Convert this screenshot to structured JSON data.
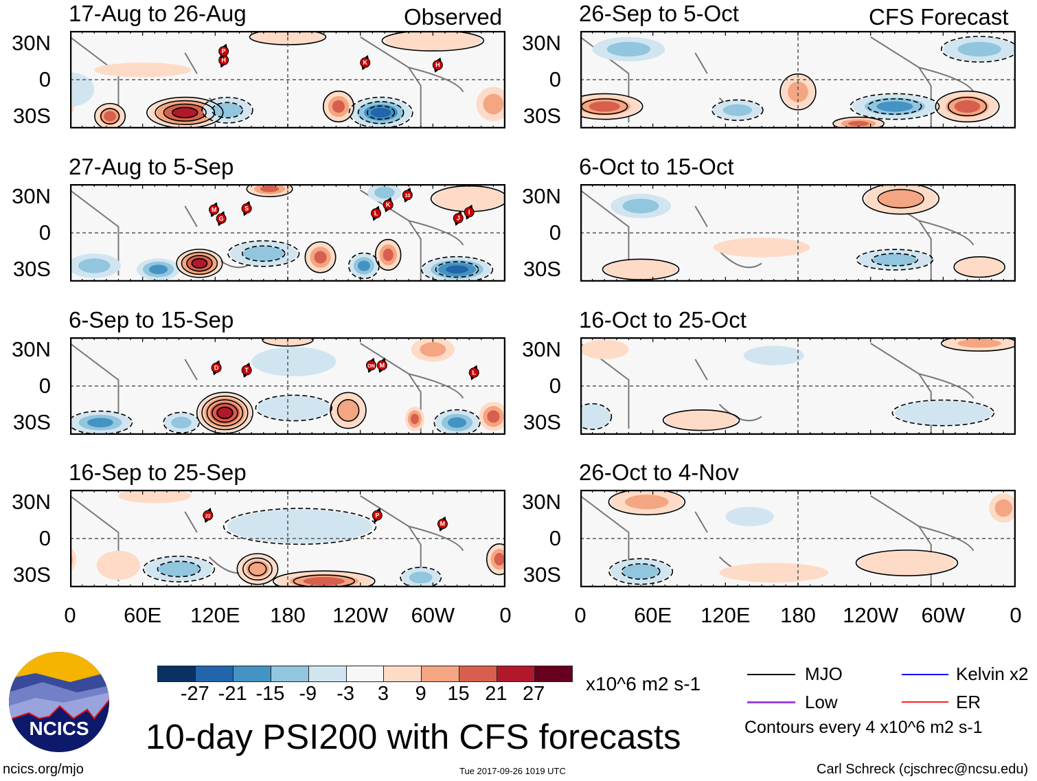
{
  "headers": {
    "observed": "Observed",
    "forecast": "CFS Forecast"
  },
  "lat_labels": [
    "30N",
    "0",
    "30S"
  ],
  "lon_labels": [
    "0",
    "60E",
    "120E",
    "180",
    "120W",
    "60W",
    "0"
  ],
  "colors": [
    "#0a3161",
    "#2166ac",
    "#4393c3",
    "#92c5de",
    "#d1e5f0",
    "#f7f7f7",
    "#fddbc7",
    "#f4a582",
    "#d6604d",
    "#b2182b",
    "#67001f"
  ],
  "chart_data": {
    "type": "heatmap",
    "title": "10-day PSI200 with CFS forecasts",
    "units": "x10^6 m2 s-1",
    "lon_range": [
      0,
      360
    ],
    "lat_range": [
      -40,
      40
    ],
    "colorbar_levels": [
      "-27",
      "-21",
      "-15",
      "-9",
      "-3",
      "3",
      "9",
      "15",
      "21",
      "27"
    ],
    "panels": [
      {
        "title": "17-Aug to 26-Aug",
        "column": "observed",
        "features": [
          {
            "lon": 95,
            "lat": -27,
            "lvl": 4,
            "w": 30,
            "h": 12,
            "rings": 4
          },
          {
            "lon": 33,
            "lat": -30,
            "lvl": 3,
            "w": 12,
            "h": 10,
            "rings": 2
          },
          {
            "lon": 257,
            "lat": -27,
            "lvl": -4,
            "w": 25,
            "h": 12,
            "rings": 3
          },
          {
            "lon": 222,
            "lat": -22,
            "lvl": 3,
            "w": 12,
            "h": 12,
            "rings": 1
          },
          {
            "lon": 130,
            "lat": -25,
            "lvl": -2,
            "w": 20,
            "h": 10,
            "rings": 2
          },
          {
            "lon": 350,
            "lat": -20,
            "lvl": 2,
            "w": 14,
            "h": 14,
            "rings": 0
          },
          {
            "lon": 300,
            "lat": 32,
            "lvl": 1,
            "w": 40,
            "h": 8,
            "rings": 1
          },
          {
            "lon": 60,
            "lat": 8,
            "lvl": 1,
            "w": 40,
            "h": 6,
            "rings": 0
          },
          {
            "lon": 0,
            "lat": -8,
            "lvl": -1,
            "w": 20,
            "h": 14,
            "rings": 0
          },
          {
            "lon": 180,
            "lat": 35,
            "lvl": 1,
            "w": 30,
            "h": 6,
            "rings": 1
          }
        ],
        "storms": [
          {
            "lon": 127,
            "lat": 16,
            "label": "H"
          },
          {
            "lon": 127,
            "lat": 19,
            "label": "P"
          },
          {
            "lon": 244,
            "lat": 14,
            "label": "K"
          },
          {
            "lon": 304,
            "lat": 12,
            "label": "H"
          }
        ]
      },
      {
        "title": "27-Aug to 5-Sep",
        "column": "observed",
        "features": [
          {
            "lon": 107,
            "lat": -25,
            "lvl": 4,
            "w": 18,
            "h": 11,
            "rings": 4
          },
          {
            "lon": 73,
            "lat": -30,
            "lvl": -3,
            "w": 18,
            "h": 9,
            "rings": 0
          },
          {
            "lon": 20,
            "lat": -27,
            "lvl": -2,
            "w": 22,
            "lat2": 0,
            "h": 10,
            "rings": 0
          },
          {
            "lon": 160,
            "lat": -17,
            "lvl": -2,
            "w": 28,
            "h": 10,
            "rings": 2
          },
          {
            "lon": 207,
            "lat": -20,
            "lvl": 3,
            "w": 12,
            "h": 12,
            "rings": 1
          },
          {
            "lon": 243,
            "lat": -27,
            "lvl": -3,
            "w": 12,
            "h": 10,
            "rings": 1
          },
          {
            "lon": 263,
            "lat": -18,
            "lvl": 3,
            "w": 10,
            "h": 12,
            "rings": 1
          },
          {
            "lon": 320,
            "lat": -30,
            "lvl": -4,
            "w": 28,
            "h": 10,
            "rings": 2
          },
          {
            "lon": 165,
            "lat": 36,
            "lvl": 3,
            "w": 18,
            "h": 6,
            "rings": 1
          },
          {
            "lon": 330,
            "lat": 28,
            "lvl": 1,
            "w": 30,
            "h": 10,
            "rings": 1
          },
          {
            "lon": 260,
            "lat": 33,
            "lvl": -2,
            "w": 14,
            "h": 8,
            "rings": 0
          }
        ],
        "storms": [
          {
            "lon": 119,
            "lat": 19,
            "label": "M"
          },
          {
            "lon": 125,
            "lat": 17,
            "label": "G"
          },
          {
            "lon": 146,
            "lat": 20,
            "label": "S"
          },
          {
            "lon": 253,
            "lat": 16,
            "label": "L"
          },
          {
            "lon": 263,
            "lat": 23,
            "label": "K"
          },
          {
            "lon": 279,
            "lat": 31,
            "label": "10"
          },
          {
            "lon": 321,
            "lat": 12,
            "label": "J"
          },
          {
            "lon": 330,
            "lat": 17,
            "label": "I"
          }
        ]
      },
      {
        "title": "6-Sep to 15-Sep",
        "column": "observed",
        "features": [
          {
            "lon": 128,
            "lat": -22,
            "lvl": 4,
            "w": 22,
            "h": 16,
            "rings": 5
          },
          {
            "lon": 25,
            "lat": -30,
            "lvl": -3,
            "w": 25,
            "h": 9,
            "rings": 1
          },
          {
            "lon": 92,
            "lat": -30,
            "lvl": -2,
            "w": 14,
            "h": 8,
            "rings": 1
          },
          {
            "lon": 230,
            "lat": -20,
            "lvl": 2,
            "w": 14,
            "h": 14,
            "rings": 2
          },
          {
            "lon": 285,
            "lat": -27,
            "lvl": 3,
            "w": 8,
            "h": 10,
            "rings": 0
          },
          {
            "lon": 320,
            "lat": -30,
            "lvl": -3,
            "w": 18,
            "h": 10,
            "rings": 1
          },
          {
            "lon": 350,
            "lat": -25,
            "lvl": 3,
            "w": 12,
            "h": 12,
            "rings": 0
          },
          {
            "lon": 185,
            "lat": -18,
            "lvl": -1,
            "w": 30,
            "h": 10,
            "rings": 1
          },
          {
            "lon": 185,
            "lat": 20,
            "lvl": -1,
            "w": 35,
            "h": 12,
            "rings": 0
          },
          {
            "lon": 300,
            "lat": 30,
            "lvl": 2,
            "w": 18,
            "h": 10,
            "rings": 0
          },
          {
            "lon": 180,
            "lat": 38,
            "lvl": 1,
            "w": 20,
            "h": 5,
            "rings": 1
          }
        ],
        "storms": [
          {
            "lon": 121,
            "lat": 15,
            "label": "D"
          },
          {
            "lon": 146,
            "lat": 13,
            "label": "T"
          },
          {
            "lon": 249,
            "lat": 17,
            "label": "ON"
          },
          {
            "lon": 258,
            "lat": 17,
            "label": "M"
          },
          {
            "lon": 334,
            "lat": 11,
            "label": "L"
          }
        ]
      },
      {
        "title": "16-Sep to 25-Sep",
        "column": "observed",
        "features": [
          {
            "lon": 90,
            "lat": -25,
            "lvl": -2,
            "w": 28,
            "h": 10,
            "rings": 2
          },
          {
            "lon": 155,
            "lat": -25,
            "lvl": 2,
            "w": 16,
            "h": 12,
            "rings": 3
          },
          {
            "lon": 210,
            "lat": -35,
            "lvl": 3,
            "w": 40,
            "h": 8,
            "rings": 2
          },
          {
            "lon": 290,
            "lat": -32,
            "lvl": -2,
            "w": 16,
            "h": 8,
            "rings": 1
          },
          {
            "lon": 355,
            "lat": -17,
            "lvl": 3,
            "w": 10,
            "h": 12,
            "rings": 1
          },
          {
            "lon": 40,
            "lat": -22,
            "lvl": 1,
            "w": 18,
            "h": 12,
            "rings": 0
          },
          {
            "lon": 190,
            "lat": 10,
            "lvl": -1,
            "w": 60,
            "h": 14,
            "rings": 1
          },
          {
            "lon": 70,
            "lat": 35,
            "lvl": 1,
            "w": 30,
            "h": 6,
            "rings": 0
          }
        ],
        "storms": [
          {
            "lon": 114,
            "lat": 19,
            "label": "22"
          },
          {
            "lon": 254,
            "lat": 19,
            "label": "P"
          },
          {
            "lon": 308,
            "lat": 12,
            "label": "M"
          }
        ]
      },
      {
        "title": "26-Sep to 5-Oct",
        "column": "forecast",
        "features": [
          {
            "lon": 20,
            "lat": -22,
            "lvl": 3,
            "w": 30,
            "h": 10,
            "rings": 2
          },
          {
            "lon": 260,
            "lat": -22,
            "lvl": -3,
            "w": 35,
            "h": 10,
            "rings": 2
          },
          {
            "lon": 320,
            "lat": -22,
            "lvl": 3,
            "w": 25,
            "h": 12,
            "rings": 2
          },
          {
            "lon": 180,
            "lat": -10,
            "lvl": 2,
            "w": 14,
            "h": 14,
            "rings": 1
          },
          {
            "lon": 130,
            "lat": -25,
            "lvl": -2,
            "w": 20,
            "h": 8,
            "rings": 1
          },
          {
            "lon": 40,
            "lat": 25,
            "lvl": -2,
            "w": 30,
            "h": 10,
            "rings": 0
          },
          {
            "lon": 330,
            "lat": 25,
            "lvl": -2,
            "w": 30,
            "h": 10,
            "rings": 1
          },
          {
            "lon": 230,
            "lat": -36,
            "lvl": 3,
            "w": 20,
            "h": 5,
            "rings": 1
          }
        ],
        "storms": []
      },
      {
        "title": "6-Oct to 15-Oct",
        "column": "forecast",
        "features": [
          {
            "lon": 265,
            "lat": 28,
            "lvl": 2,
            "w": 30,
            "h": 12,
            "rings": 2
          },
          {
            "lon": 50,
            "lat": -30,
            "lvl": 1,
            "w": 30,
            "h": 8,
            "rings": 1
          },
          {
            "lon": 260,
            "lat": -22,
            "lvl": -2,
            "w": 30,
            "h": 8,
            "rings": 2
          },
          {
            "lon": 50,
            "lat": 22,
            "lvl": -2,
            "w": 25,
            "h": 10,
            "rings": 0
          },
          {
            "lon": 150,
            "lat": -12,
            "lvl": 1,
            "w": 40,
            "h": 8,
            "rings": 0
          },
          {
            "lon": 330,
            "lat": -28,
            "lvl": 1,
            "w": 20,
            "h": 8,
            "rings": 1
          }
        ],
        "storms": []
      },
      {
        "title": "16-Oct to 25-Oct",
        "column": "forecast",
        "features": [
          {
            "lon": 100,
            "lat": -28,
            "lvl": 1,
            "w": 30,
            "h": 8,
            "rings": 1
          },
          {
            "lon": 330,
            "lat": 35,
            "lvl": 2,
            "w": 30,
            "h": 6,
            "rings": 1
          },
          {
            "lon": 20,
            "lat": 30,
            "lvl": 1,
            "w": 20,
            "h": 8,
            "rings": 0
          },
          {
            "lon": 300,
            "lat": -22,
            "lvl": -1,
            "w": 40,
            "h": 10,
            "rings": 1
          },
          {
            "lon": 10,
            "lat": -25,
            "lvl": -1,
            "w": 15,
            "h": 10,
            "rings": 1
          },
          {
            "lon": 160,
            "lat": 25,
            "lvl": -1,
            "w": 25,
            "h": 8,
            "rings": 0
          }
        ],
        "storms": []
      },
      {
        "title": "26-Oct to 4-Nov",
        "column": "forecast",
        "features": [
          {
            "lon": 55,
            "lat": 30,
            "lvl": 2,
            "w": 30,
            "h": 10,
            "rings": 1
          },
          {
            "lon": 50,
            "lat": -27,
            "lvl": -2,
            "w": 25,
            "h": 10,
            "rings": 2
          },
          {
            "lon": 160,
            "lat": -28,
            "lvl": 1,
            "w": 45,
            "h": 8,
            "rings": 0
          },
          {
            "lon": 270,
            "lat": -20,
            "lvl": 1,
            "w": 40,
            "h": 10,
            "rings": 1
          },
          {
            "lon": 350,
            "lat": 25,
            "lvl": 2,
            "w": 12,
            "h": 12,
            "rings": 0
          },
          {
            "lon": 140,
            "lat": 18,
            "lvl": -1,
            "w": 20,
            "h": 8,
            "rings": 0
          }
        ],
        "storms": []
      }
    ]
  },
  "colorbar": {
    "labels": [
      "-27",
      "-21",
      "-15",
      "-9",
      "-3",
      "3",
      "9",
      "15",
      "21",
      "27"
    ],
    "units": "x10^6 m2 s-1"
  },
  "legend": {
    "items": [
      {
        "label": "MJO",
        "color": "#000000"
      },
      {
        "label": "Kelvin x2",
        "color": "#0000ff"
      },
      {
        "label": "Low",
        "color": "#a040e0"
      },
      {
        "label": "ER",
        "color": "#ff2020"
      }
    ],
    "contour_note": "Contours every 4 x10^6 m2 s-1"
  },
  "logo": {
    "text": "NCICS"
  },
  "footer": {
    "url": "ncics.org/mjo",
    "timestamp": "Tue 2017-09-26 1019 UTC",
    "credit": "Carl Schreck (cjschrec@ncsu.edu)",
    "main_title": "10-day PSI200 with CFS forecasts"
  }
}
